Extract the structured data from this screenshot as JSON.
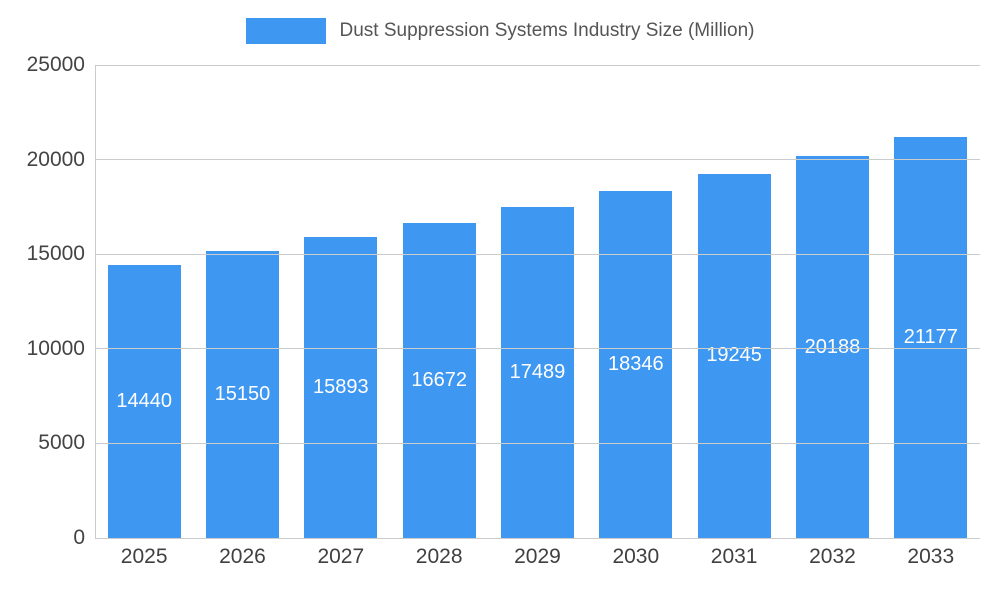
{
  "legend": {
    "title": "Dust Suppression Systems Industry Size (Million)"
  },
  "chart_data": {
    "type": "bar",
    "title": "Dust Suppression Systems Industry Size (Million)",
    "categories": [
      "2025",
      "2026",
      "2027",
      "2028",
      "2029",
      "2030",
      "2031",
      "2032",
      "2033"
    ],
    "values": [
      14440,
      15150,
      15893,
      16672,
      17489,
      18346,
      19245,
      20188,
      21177
    ],
    "xlabel": "",
    "ylabel": "",
    "ylim": [
      0,
      25000
    ],
    "yticks": [
      0,
      5000,
      10000,
      15000,
      20000,
      25000
    ],
    "grid": true,
    "legend_position": "top",
    "bar_color": "#3E97F0",
    "value_label_color": "#ffffff",
    "gridline_color": "#cccccc",
    "axis_text_color": "#444444",
    "title_color": "#555555"
  }
}
